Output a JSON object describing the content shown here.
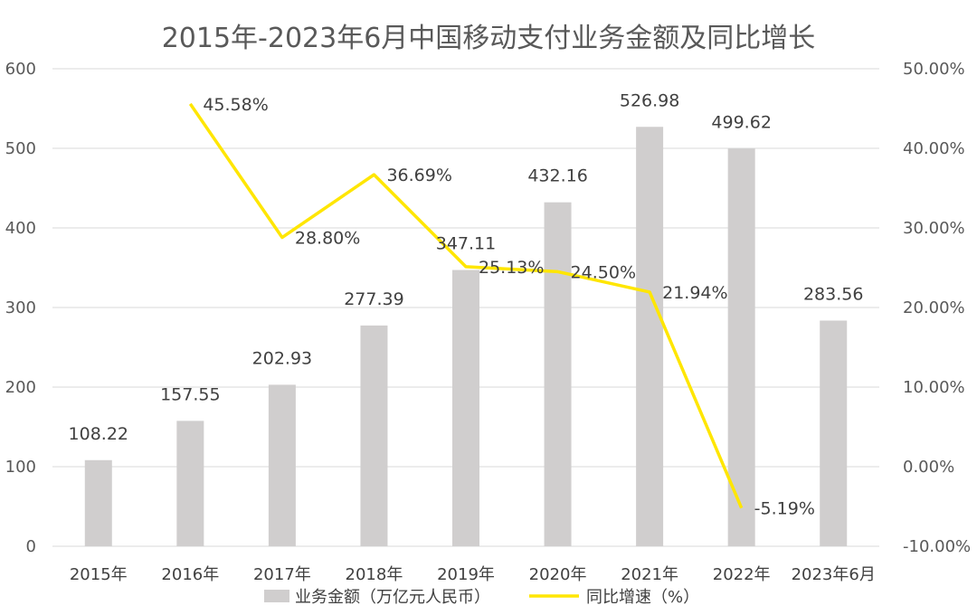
{
  "chart_data": {
    "type": "bar",
    "title": "2015年-2023年6月中国移动支付业务金额及同比增长",
    "categories": [
      "2015年",
      "2016年",
      "2017年",
      "2018年",
      "2019年",
      "2020年",
      "2021年",
      "2022年",
      "2023年6月"
    ],
    "series": [
      {
        "name": "业务金额（万亿元人民币）",
        "type": "bar",
        "axis": "left",
        "color": "#d0cece",
        "values": [
          108.22,
          157.55,
          202.93,
          277.39,
          347.11,
          432.16,
          526.98,
          499.62,
          283.56
        ],
        "labels": [
          "108.22",
          "157.55",
          "202.93",
          "277.39",
          "347.11",
          "432.16",
          "526.98",
          "499.62",
          "283.56"
        ]
      },
      {
        "name": "同比增速（%）",
        "type": "line",
        "axis": "right",
        "color": "#ffe600",
        "values": [
          null,
          45.58,
          28.8,
          36.69,
          25.13,
          24.5,
          21.94,
          -5.19,
          null
        ],
        "labels": [
          "",
          "45.58%",
          "28.80%",
          "36.69%",
          "25.13%",
          "24.50%",
          "21.94%",
          "-5.19%",
          ""
        ]
      }
    ],
    "y_left": {
      "min": 0,
      "max": 600,
      "ticks": [
        "0",
        "100",
        "200",
        "300",
        "400",
        "500",
        "600"
      ]
    },
    "y_right": {
      "min": -10,
      "max": 50,
      "ticks": [
        "-10.00%",
        "0.00%",
        "10.00%",
        "20.00%",
        "30.00%",
        "40.00%",
        "50.00%"
      ]
    },
    "grid": true,
    "legend_position": "bottom"
  }
}
